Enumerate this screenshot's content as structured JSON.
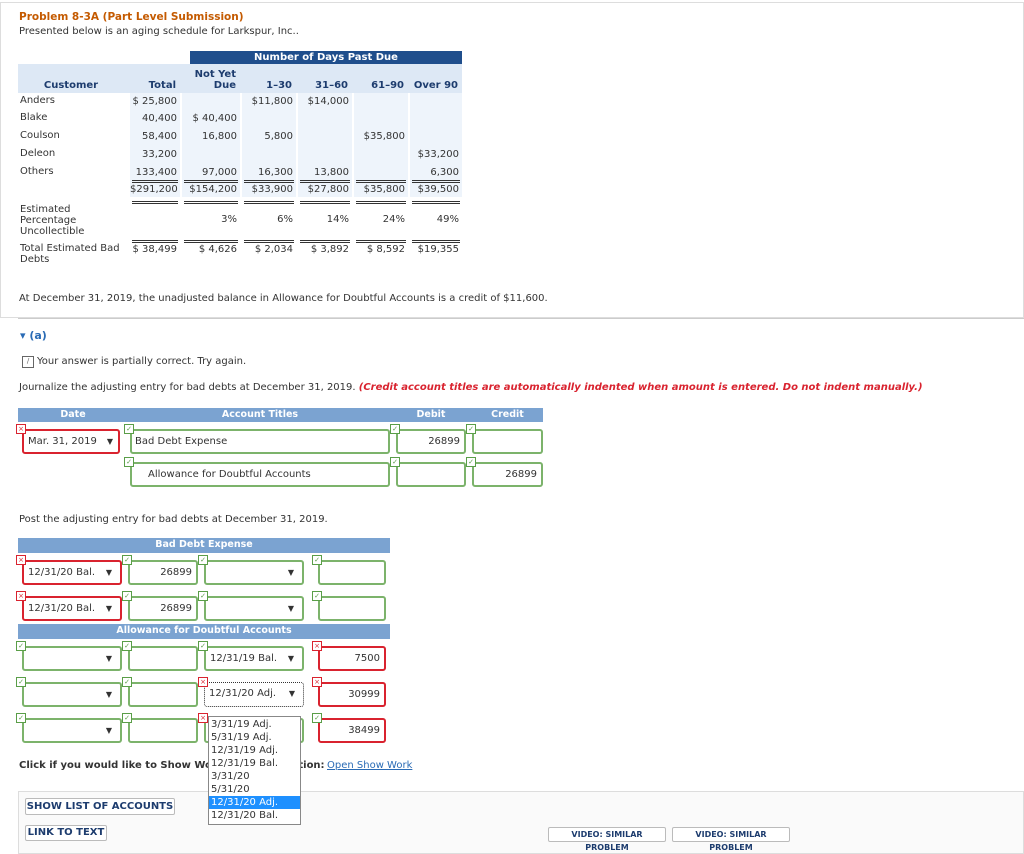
{
  "header": {
    "title": "Problem 8-3A (Part Level Submission)",
    "subtitle": "Presented below is an aging schedule for Larkspur, Inc.."
  },
  "aging_table": {
    "group_header": "Number of Days Past Due",
    "columns": [
      "Customer",
      "Total",
      "Not Yet Due",
      "1–30",
      "31–60",
      "61–90",
      "Over 90"
    ],
    "rows": [
      [
        "Anders",
        "$ 25,800",
        null,
        "$11,800",
        "$14,000",
        null,
        null
      ],
      [
        "Blake",
        "40,400",
        "$ 40,400",
        null,
        null,
        null,
        null
      ],
      [
        "Coulson",
        "58,400",
        "16,800",
        "5,800",
        null,
        "$35,800",
        null
      ],
      [
        "Deleon",
        "33,200",
        null,
        null,
        null,
        null,
        "$33,200"
      ],
      [
        "Others",
        "133,400",
        "97,000",
        "16,300",
        "13,800",
        null,
        "6,300"
      ],
      [
        null,
        "$291,200",
        "$154,200",
        "$33,900",
        "$27,800",
        "$35,800",
        "$39,500"
      ],
      [
        "Estimated Percentage Uncollectible",
        null,
        "3%",
        "6%",
        "14%",
        "24%",
        "49%"
      ],
      [
        "Total Estimated Bad Debts",
        "$ 38,499",
        "$ 4,626",
        "$ 2,034",
        "$ 3,892",
        "$ 8,592",
        "$19,355"
      ]
    ]
  },
  "balance_note": "At December 31, 2019, the unadjusted balance in Allowance for Doubtful Accounts is a credit of $11,600.",
  "part": "(a)",
  "feedback": "Your answer is partially correct.  Try again.",
  "journal": {
    "instruction": "Journalize the adjusting entry for bad debts at December 31, 2019.",
    "note": "(Credit account titles are automatically indented when amount is entered. Do not indent manually.)",
    "headers": [
      "Date",
      "Account Titles",
      "Debit",
      "Credit"
    ],
    "rows": [
      {
        "date": "Mar. 31, 2019",
        "account": "Bad Debt Expense",
        "debit": 26899
      },
      {
        "account": "Allowance for Doubtful Accounts",
        "credit": 26899
      }
    ]
  },
  "posting": {
    "instruction": "Post the adjusting entry for bad debts at December 31, 2019.",
    "accounts": [
      {
        "name": "Bad Debt Expense",
        "rows": [
          {
            "debit_date": "12/31/20 Bal.",
            "debit": 26899
          },
          {
            "debit_date": "12/31/20 Bal.",
            "debit": 26899
          }
        ]
      },
      {
        "name": "Allowance for Doubtful Accounts",
        "rows": [
          {
            "credit_date": "12/31/19 Bal.",
            "credit": 7500
          },
          {
            "credit_date": "12/31/20 Adj.",
            "credit": 30999
          },
          {
            "credit": 38499
          }
        ]
      }
    ]
  },
  "dropdown": {
    "options": [
      "3/31/19 Adj.",
      "5/31/19 Adj.",
      "12/31/19 Adj.",
      "12/31/19 Bal.",
      "3/31/20",
      "5/31/20",
      "12/31/20 Adj.",
      "12/31/20 Bal."
    ],
    "selected": 6
  },
  "show_work": {
    "prompt": "Click if you would like to Show Work for this question:",
    "link": "Open Show Work"
  },
  "buttons": {
    "accounts": "SHOW LIST OF ACCOUNTS",
    "text": "LINK TO TEXT",
    "video1": "VIDEO: SIMILAR PROBLEM",
    "video2": "VIDEO: SIMILAR PROBLEM"
  }
}
